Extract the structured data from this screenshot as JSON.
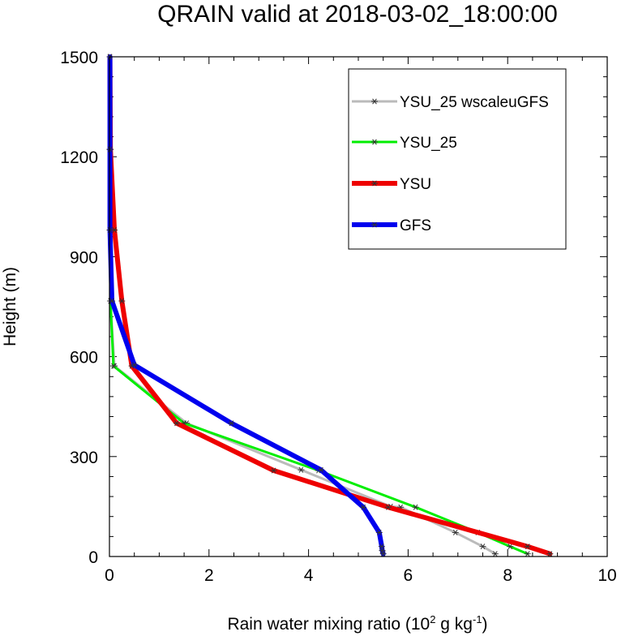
{
  "chart_data": {
    "type": "line",
    "title": "QRAIN valid at 2018-03-02_18:00:00",
    "xlabel": "Rain water mixing ratio (10",
    "xlabel_sup1": "2",
    "xlabel_mid": " g kg",
    "xlabel_sup2": "-1",
    "xlabel_end": ")",
    "ylabel": "Height (m)",
    "xlim": [
      0,
      10
    ],
    "ylim": [
      0,
      1500
    ],
    "x_ticks": [
      "0",
      "2",
      "4",
      "6",
      "8",
      "10"
    ],
    "y_ticks": [
      "0",
      "300",
      "600",
      "900",
      "1200",
      "1500"
    ],
    "x_tick_values": [
      0,
      2,
      4,
      6,
      8,
      10
    ],
    "y_tick_values": [
      0,
      300,
      600,
      900,
      1200,
      1500
    ],
    "legend_position": "top-right",
    "series": [
      {
        "name": "YSU_25 wscaleuGFS",
        "color": "#bbbbbb",
        "line_width": 3,
        "points": [
          [
            7.75,
            8
          ],
          [
            7.5,
            30
          ],
          [
            6.95,
            72
          ],
          [
            5.85,
            148
          ],
          [
            5.65,
            150
          ],
          [
            3.85,
            260
          ],
          [
            1.55,
            400
          ],
          [
            0.1,
            572
          ],
          [
            0.02,
            767
          ],
          [
            0.01,
            980
          ],
          [
            0.01,
            1222
          ],
          [
            0.01,
            1500
          ]
        ]
      },
      {
        "name": "YSU_25",
        "color": "#00ee00",
        "line_width": 3,
        "points": [
          [
            8.4,
            8
          ],
          [
            8.05,
            30
          ],
          [
            7.4,
            72
          ],
          [
            6.15,
            148
          ],
          [
            4.2,
            258
          ],
          [
            1.5,
            400
          ],
          [
            0.08,
            572
          ],
          [
            0.02,
            767
          ],
          [
            0.01,
            980
          ],
          [
            0.01,
            1222
          ],
          [
            0.01,
            1500
          ]
        ]
      },
      {
        "name": "YSU",
        "color": "#ee0000",
        "line_width": 6,
        "points": [
          [
            8.85,
            8
          ],
          [
            8.4,
            30
          ],
          [
            5.6,
            148
          ],
          [
            3.3,
            258
          ],
          [
            1.35,
            400
          ],
          [
            0.45,
            572
          ],
          [
            0.25,
            767
          ],
          [
            0.1,
            980
          ],
          [
            0.02,
            1222
          ],
          [
            0.01,
            1500
          ]
        ]
      },
      {
        "name": "GFS",
        "color": "#0000ee",
        "line_width": 6,
        "points": [
          [
            5.5,
            8
          ],
          [
            5.48,
            18
          ],
          [
            5.47,
            30
          ],
          [
            5.42,
            72
          ],
          [
            5.1,
            148
          ],
          [
            4.25,
            260
          ],
          [
            2.45,
            400
          ],
          [
            0.5,
            575
          ],
          [
            0.05,
            767
          ],
          [
            0.01,
            980
          ],
          [
            0.01,
            1222
          ],
          [
            0.01,
            1500
          ]
        ]
      }
    ]
  }
}
